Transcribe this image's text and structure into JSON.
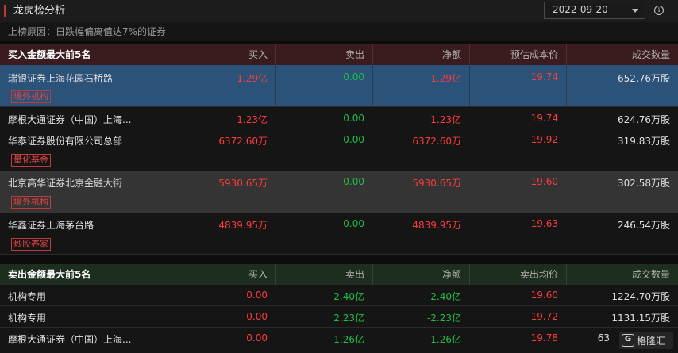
{
  "title": "龙虎榜分析",
  "date_select": {
    "value": "2022-09-20"
  },
  "info_icon": "i",
  "reason": "上榜原因：日跌幅偏离值达7%的证券",
  "buy_section": {
    "headers": [
      "买入金额最大前5名",
      "买入",
      "卖出",
      "净额",
      "预估成本价",
      "成交数量"
    ],
    "rows": [
      {
        "name": "瑞银证券上海花园石桥路",
        "buy": "1.29亿",
        "sell": "0.00",
        "net": "1.29亿",
        "price": "19.74",
        "volume": "652.76万股",
        "tag": "境外机构"
      },
      {
        "name": "摩根大通证券（中国）上海...",
        "buy": "1.23亿",
        "sell": "0.00",
        "net": "1.23亿",
        "price": "19.74",
        "volume": "624.76万股",
        "tag": ""
      },
      {
        "name": "华泰证券股份有限公司总部",
        "buy": "6372.60万",
        "sell": "0.00",
        "net": "6372.60万",
        "price": "19.92",
        "volume": "319.83万股",
        "tag": "量化基金"
      },
      {
        "name": "北京高华证券北京金融大街",
        "buy": "5930.65万",
        "sell": "0.00",
        "net": "5930.65万",
        "price": "19.60",
        "volume": "302.58万股",
        "tag": "境外机构"
      },
      {
        "name": "华鑫证券上海茅台路",
        "buy": "4839.95万",
        "sell": "0.00",
        "net": "4839.95万",
        "price": "19.63",
        "volume": "246.54万股",
        "tag": "炒股养家"
      }
    ]
  },
  "sell_section": {
    "headers": [
      "卖出金额最大前5名",
      "买入",
      "卖出",
      "净额",
      "卖出均价",
      "成交数量"
    ],
    "rows": [
      {
        "name": "机构专用",
        "buy": "0.00",
        "sell": "2.40亿",
        "net": "-2.40亿",
        "price": "19.60",
        "volume": "1224.70万股"
      },
      {
        "name": "机构专用",
        "buy": "0.00",
        "sell": "2.23亿",
        "net": "-2.23亿",
        "price": "19.72",
        "volume": "1131.15万股"
      },
      {
        "name": "摩根大通证券（中国）上海...",
        "buy": "0.00",
        "sell": "1.26亿",
        "net": "-1.26亿",
        "price": "19.78",
        "volume": "63"
      }
    ]
  },
  "watermark": {
    "mark": "G",
    "text": "格隆汇"
  },
  "colors": {
    "up": "#ff3b3b",
    "down": "#1fbf45",
    "selected_row": "#2b5279",
    "buy_header": "#3a1c1e",
    "sell_header": "#1d2e1f"
  }
}
